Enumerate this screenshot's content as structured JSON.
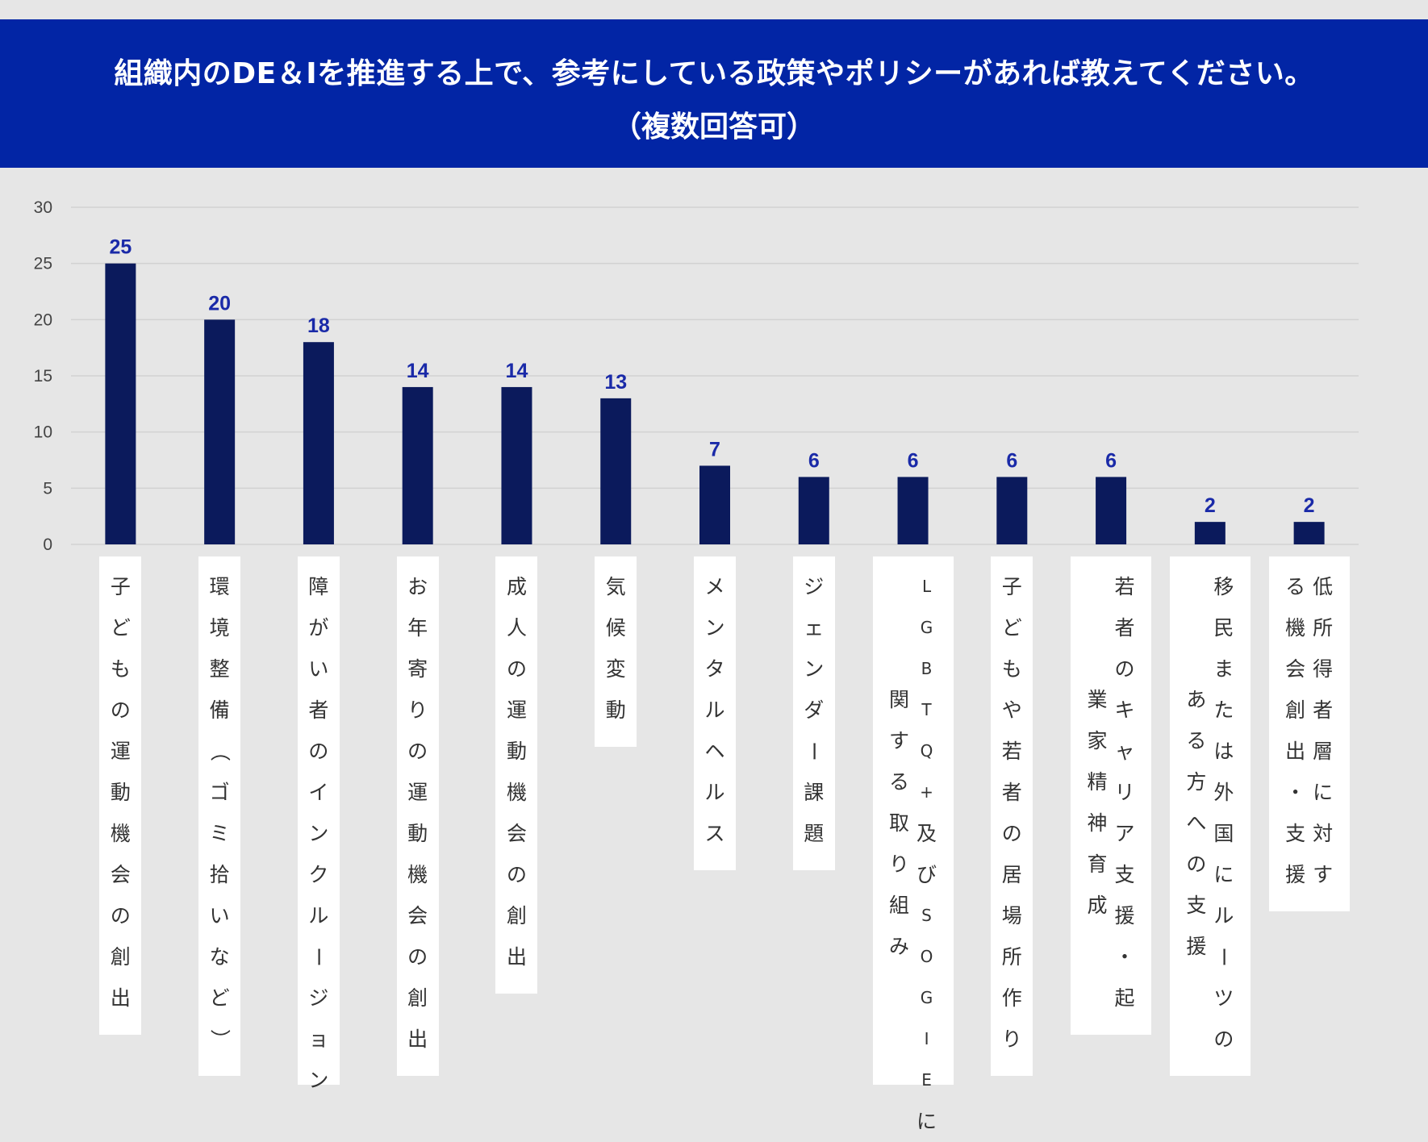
{
  "header": {
    "title_line1": "組織内のDE＆Iを推進する上で、参考にしている政策やポリシーがあれば教えてください。",
    "title_line2": "（複数回答可）",
    "background": "#0225a5"
  },
  "chart_data": {
    "type": "bar",
    "title": "組織内のDE＆Iを推進する上で、参考にしている政策やポリシーがあれば教えてください。（複数回答可）",
    "categories": [
      "子どもの運動機会の創出",
      "環境整備（ゴミ拾いなど）",
      "障がい者のインクルージョン",
      "お年寄りの運動機会の創出",
      "成人の運動機会の創出",
      "気候変動",
      "メンタルヘルス",
      "ジェンダー課題",
      "LGBTQ+及びSOGIEに関する取り組み",
      "子どもや若者の居場所作り",
      "若者のキャリア支援・起業家精神育成",
      "移民または外国にルーツのある方への支援",
      "低所得者層に対する機会創出・支援"
    ],
    "values": [
      25,
      20,
      18,
      14,
      14,
      13,
      7,
      6,
      6,
      6,
      6,
      2,
      2
    ],
    "ylim": [
      0,
      30
    ],
    "yticks": [
      0,
      5,
      10,
      15,
      20,
      25,
      30
    ],
    "xlabel": "",
    "ylabel": "",
    "grid": true,
    "legend": "none",
    "bar_color": "#0b1a5c",
    "label_color": "#1a2aa8"
  }
}
